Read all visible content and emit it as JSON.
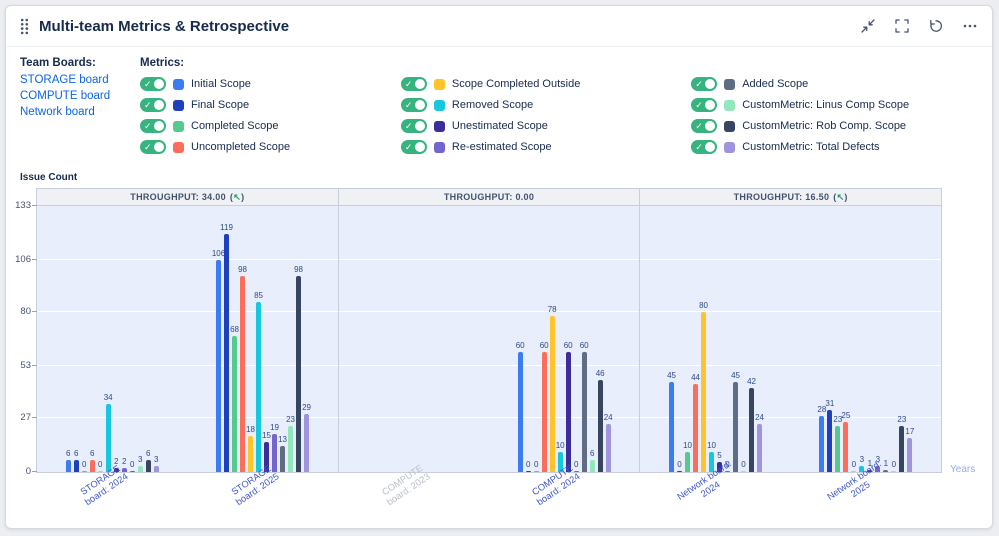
{
  "widget": {
    "title": "Multi-team Metrics & Retrospective",
    "controls": [
      {
        "name": "collapse",
        "label": "Collapse"
      },
      {
        "name": "fullscreen",
        "label": "Fullscreen"
      },
      {
        "name": "history",
        "label": "Reload"
      },
      {
        "name": "more",
        "label": "More options"
      }
    ]
  },
  "team_boards": {
    "label": "Team Boards:",
    "boards": [
      "STORAGE board",
      "COMPUTE board",
      "Network board"
    ]
  },
  "metrics_section": {
    "label": "Metrics:"
  },
  "chart_data": {
    "type": "bar",
    "ylabel": "Issue Count",
    "xlabel": "Years",
    "ylim": [
      0,
      133
    ],
    "yticks": [
      0,
      27,
      53,
      80,
      106,
      133
    ],
    "grid": true,
    "legend_position": "top",
    "series": [
      {
        "name": "Initial Scope",
        "color": "#3b7df0",
        "enabled": true
      },
      {
        "name": "Final Scope",
        "color": "#1e40bf",
        "enabled": true
      },
      {
        "name": "Completed Scope",
        "color": "#57c98f",
        "enabled": true
      },
      {
        "name": "Uncompleted Scope",
        "color": "#fc6e5c",
        "enabled": true
      },
      {
        "name": "Scope Completed Outside",
        "color": "#ffc32b",
        "enabled": true
      },
      {
        "name": "Removed Scope",
        "color": "#16c7de",
        "enabled": true
      },
      {
        "name": "Unestimated Scope",
        "color": "#3b2e9c",
        "enabled": true
      },
      {
        "name": "Re-estimated Scope",
        "color": "#7265cf",
        "enabled": true
      },
      {
        "name": "Added Scope",
        "color": "#5e6c84",
        "enabled": true
      },
      {
        "name": "CustomMetric: Linus Comp Scope",
        "color": "#93e7bd",
        "enabled": true
      },
      {
        "name": "CustomMetric: Rob Comp. Scope",
        "color": "#384560",
        "enabled": true
      },
      {
        "name": "CustomMetric: Total Defects",
        "color": "#a095dc",
        "enabled": true
      }
    ],
    "panels": [
      {
        "header": "THROUGHPUT: 34.00",
        "trend_arrow": "↖",
        "groups": [
          {
            "label": "STORAGE board: 2024",
            "disabled": false,
            "values": [
              6,
              6,
              0,
              6,
              0,
              34,
              2,
              2,
              0,
              3,
              6,
              3
            ]
          },
          {
            "label": "STORAGE board: 2025",
            "disabled": false,
            "values": [
              106,
              119,
              68,
              98,
              18,
              85,
              15,
              19,
              13,
              23,
              98,
              29
            ]
          }
        ]
      },
      {
        "header": "THROUGHPUT: 0.00",
        "trend_arrow": "",
        "groups": [
          {
            "label": "COMPUTE board: 2023",
            "disabled": true,
            "values": [
              0,
              0,
              0,
              0,
              0,
              0,
              0,
              0,
              0,
              0,
              0,
              0
            ]
          },
          {
            "label": "COMPUTE board: 2024",
            "disabled": false,
            "values": [
              60,
              0,
              0,
              60,
              78,
              10,
              60,
              0,
              60,
              6,
              46,
              24
            ]
          }
        ]
      },
      {
        "header": "THROUGHPUT: 16.50",
        "trend_arrow": "↖",
        "groups": [
          {
            "label": "Network board: 2024",
            "disabled": false,
            "values": [
              45,
              0,
              10,
              44,
              80,
              10,
              5,
              0,
              45,
              0,
              42,
              24
            ]
          },
          {
            "label": "Network board: 2025",
            "disabled": false,
            "values": [
              28,
              31,
              23,
              25,
              0,
              3,
              1,
              3,
              1,
              0,
              23,
              17
            ]
          }
        ]
      }
    ]
  }
}
